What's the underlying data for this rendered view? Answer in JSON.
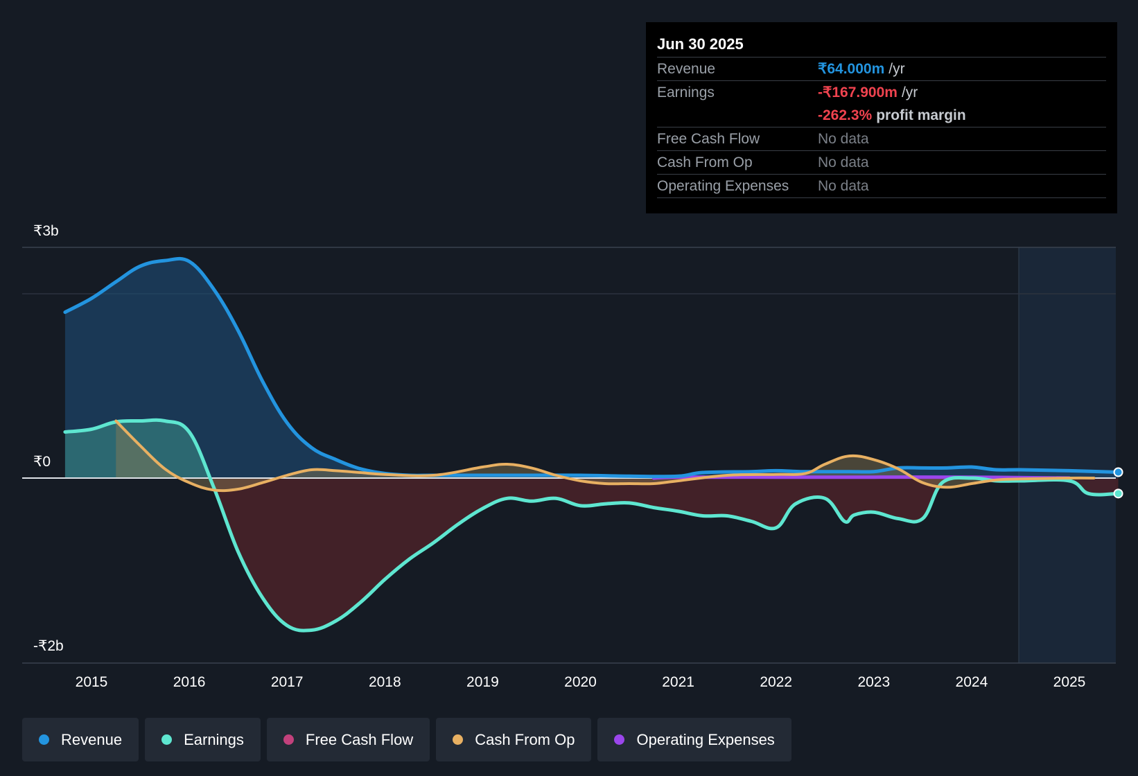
{
  "tooltip": {
    "date": "Jun 30 2025",
    "rows": {
      "revenue": {
        "label": "Revenue",
        "value": "₹64.000m",
        "suffix": "/yr"
      },
      "earnings": {
        "label": "Earnings",
        "value": "-₹167.900m",
        "suffix": "/yr"
      },
      "margin": {
        "value": "-262.3%",
        "suffix": "profit margin"
      },
      "fcf": {
        "label": "Free Cash Flow",
        "value": "No data"
      },
      "cfo": {
        "label": "Cash From Op",
        "value": "No data"
      },
      "opex": {
        "label": "Operating Expenses",
        "value": "No data"
      }
    }
  },
  "legend": [
    {
      "label": "Revenue",
      "color": "#2394df"
    },
    {
      "label": "Earnings",
      "color": "#5ee6d0"
    },
    {
      "label": "Free Cash Flow",
      "color": "#c2417c"
    },
    {
      "label": "Cash From Op",
      "color": "#e8b062"
    },
    {
      "label": "Operating Expenses",
      "color": "#9b46ec"
    }
  ],
  "colors": {
    "revenue": "#2394df",
    "earnings": "#5ee6d0",
    "fcf": "#c2417c",
    "cfo": "#e8b062",
    "opex": "#9b46ec",
    "loss_fill": "#4a2229",
    "negative": "#f0434f"
  },
  "chart_data": {
    "type": "line",
    "currency": "INR",
    "y_unit": "₹ billions",
    "ylim": [
      -2.0,
      2.5
    ],
    "y_tick_labels": [
      "₹3b",
      "₹0",
      "-₹2b"
    ],
    "x_tick_labels": [
      "2015",
      "2016",
      "2017",
      "2018",
      "2019",
      "2020",
      "2021",
      "2022",
      "2023",
      "2024",
      "2025"
    ],
    "xlim": [
      2014.25,
      2025.5
    ],
    "forecast_start": 2024.5,
    "series": [
      {
        "name": "Revenue",
        "key": "revenue",
        "x": [
          2014.73,
          2015.0,
          2015.25,
          2015.5,
          2015.75,
          2016.0,
          2016.25,
          2016.5,
          2016.75,
          2017.0,
          2017.25,
          2017.5,
          2017.75,
          2018.0,
          2018.25,
          2018.5,
          2019.0,
          2019.5,
          2020.0,
          2020.5,
          2021.0,
          2021.25,
          2021.75,
          2022.0,
          2022.25,
          2022.5,
          2022.75,
          2023.0,
          2023.25,
          2023.5,
          2023.75,
          2024.0,
          2024.25,
          2024.5,
          2025.0,
          2025.5
        ],
        "values": [
          1.8,
          1.95,
          2.13,
          2.3,
          2.36,
          2.35,
          2.05,
          1.6,
          1.05,
          0.6,
          0.33,
          0.2,
          0.1,
          0.05,
          0.03,
          0.03,
          0.03,
          0.03,
          0.03,
          0.02,
          0.02,
          0.06,
          0.07,
          0.08,
          0.07,
          0.07,
          0.07,
          0.07,
          0.11,
          0.11,
          0.11,
          0.12,
          0.09,
          0.09,
          0.08,
          0.064
        ]
      },
      {
        "name": "Earnings",
        "key": "earnings",
        "x": [
          2014.73,
          2015.0,
          2015.25,
          2015.5,
          2015.75,
          2016.0,
          2016.25,
          2016.5,
          2016.75,
          2017.0,
          2017.25,
          2017.5,
          2017.75,
          2018.0,
          2018.25,
          2018.5,
          2018.75,
          2019.0,
          2019.25,
          2019.5,
          2019.75,
          2020.0,
          2020.25,
          2020.5,
          2020.75,
          2021.0,
          2021.25,
          2021.5,
          2021.75,
          2022.0,
          2022.2,
          2022.5,
          2022.7,
          2022.8,
          2023.0,
          2023.25,
          2023.5,
          2023.7,
          2024.0,
          2024.25,
          2024.5,
          2025.0,
          2025.2,
          2025.5
        ],
        "values": [
          0.5,
          0.53,
          0.61,
          0.62,
          0.62,
          0.5,
          -0.1,
          -0.8,
          -1.3,
          -1.6,
          -1.65,
          -1.55,
          -1.35,
          -1.1,
          -0.88,
          -0.7,
          -0.5,
          -0.33,
          -0.22,
          -0.25,
          -0.22,
          -0.3,
          -0.28,
          -0.27,
          -0.32,
          -0.36,
          -0.41,
          -0.41,
          -0.47,
          -0.54,
          -0.28,
          -0.22,
          -0.47,
          -0.4,
          -0.37,
          -0.44,
          -0.44,
          -0.05,
          0.0,
          -0.03,
          -0.03,
          -0.03,
          -0.17,
          -0.168
        ]
      },
      {
        "name": "Cash From Op",
        "key": "cfo",
        "x": [
          2015.25,
          2015.5,
          2015.75,
          2016.0,
          2016.25,
          2016.5,
          2016.75,
          2017.0,
          2017.25,
          2017.5,
          2017.75,
          2018.0,
          2018.5,
          2019.0,
          2019.25,
          2019.5,
          2019.75,
          2020.0,
          2020.25,
          2020.5,
          2020.75,
          2021.0,
          2021.5,
          2022.0,
          2022.3,
          2022.5,
          2022.75,
          2023.0,
          2023.25,
          2023.5,
          2023.75,
          2024.0,
          2024.25,
          2024.5,
          2025.0,
          2025.25
        ],
        "values": [
          0.62,
          0.35,
          0.1,
          -0.05,
          -0.13,
          -0.12,
          -0.05,
          0.03,
          0.09,
          0.08,
          0.06,
          0.04,
          0.03,
          0.12,
          0.15,
          0.11,
          0.03,
          -0.03,
          -0.06,
          -0.06,
          -0.06,
          -0.03,
          0.03,
          0.04,
          0.05,
          0.15,
          0.24,
          0.2,
          0.1,
          -0.05,
          -0.1,
          -0.06,
          -0.02,
          -0.01,
          0.0,
          0.0
        ]
      },
      {
        "name": "Operating Expenses",
        "key": "opex",
        "x": [
          2020.75,
          2021.0,
          2022.0,
          2023.0,
          2024.0,
          2025.0
        ],
        "values": [
          0.0,
          0.01,
          0.01,
          0.01,
          0.01,
          0.0
        ]
      },
      {
        "name": "Free Cash Flow",
        "key": "fcf",
        "x": [],
        "values": []
      }
    ]
  }
}
